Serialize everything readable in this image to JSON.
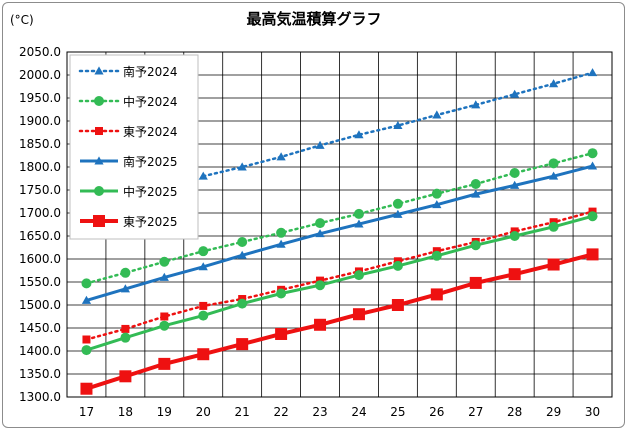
{
  "chart_data": {
    "type": "line",
    "title": "最高気温積算グラフ",
    "ylabel": "(°C)",
    "xlabel": "",
    "x": [
      17,
      18,
      19,
      20,
      21,
      22,
      23,
      24,
      25,
      26,
      27,
      28,
      29,
      30
    ],
    "xlim": [
      17,
      30
    ],
    "ylim": [
      1300,
      2050
    ],
    "ytick_step": 50,
    "grid": true,
    "legend_position": "top-left",
    "series": [
      {
        "name": "南予2024",
        "color": "#1e73be",
        "style": "dotted",
        "marker": "triangle",
        "x": [
          20,
          21,
          22,
          23,
          24,
          25,
          26,
          27,
          28,
          29,
          30
        ],
        "values": [
          1780,
          1800,
          1822,
          1847,
          1870,
          1890,
          1913,
          1935,
          1958,
          1981,
          2005
        ]
      },
      {
        "name": "中予2024",
        "color": "#33bb55",
        "style": "dotted",
        "marker": "circle",
        "x": [
          17,
          18,
          19,
          20,
          21,
          22,
          23,
          24,
          25,
          26,
          27,
          28,
          29,
          30
        ],
        "values": [
          1547,
          1570,
          1594,
          1617,
          1637,
          1657,
          1678,
          1698,
          1720,
          1742,
          1763,
          1787,
          1808,
          1830
        ]
      },
      {
        "name": "東予2024",
        "color": "#ee1111",
        "style": "dotted",
        "marker": "square",
        "x": [
          17,
          18,
          19,
          20,
          21,
          22,
          23,
          24,
          25,
          26,
          27,
          28,
          29,
          30
        ],
        "values": [
          1425,
          1448,
          1475,
          1498,
          1513,
          1533,
          1553,
          1573,
          1595,
          1617,
          1637,
          1660,
          1680,
          1703
        ]
      },
      {
        "name": "南予2025",
        "color": "#1e73be",
        "style": "solid",
        "marker": "triangle",
        "x": [
          17,
          18,
          19,
          20,
          21,
          22,
          23,
          24,
          25,
          26,
          27,
          28,
          29,
          30
        ],
        "values": [
          1510,
          1535,
          1560,
          1583,
          1608,
          1632,
          1655,
          1676,
          1697,
          1718,
          1741,
          1760,
          1780,
          1802
        ]
      },
      {
        "name": "中予2025",
        "color": "#33bb55",
        "style": "solid",
        "marker": "circle",
        "x": [
          17,
          18,
          19,
          20,
          21,
          22,
          23,
          24,
          25,
          26,
          27,
          28,
          29,
          30
        ],
        "values": [
          1402,
          1429,
          1455,
          1477,
          1503,
          1525,
          1543,
          1565,
          1585,
          1607,
          1630,
          1650,
          1670,
          1693
        ]
      },
      {
        "name": "東予2025",
        "color": "#ee1111",
        "style": "solid",
        "marker": "square",
        "x": [
          17,
          18,
          19,
          20,
          21,
          22,
          23,
          24,
          25,
          26,
          27,
          28,
          29,
          30
        ],
        "values": [
          1318,
          1345,
          1372,
          1393,
          1415,
          1437,
          1457,
          1480,
          1500,
          1523,
          1548,
          1567,
          1588,
          1610
        ]
      }
    ]
  }
}
